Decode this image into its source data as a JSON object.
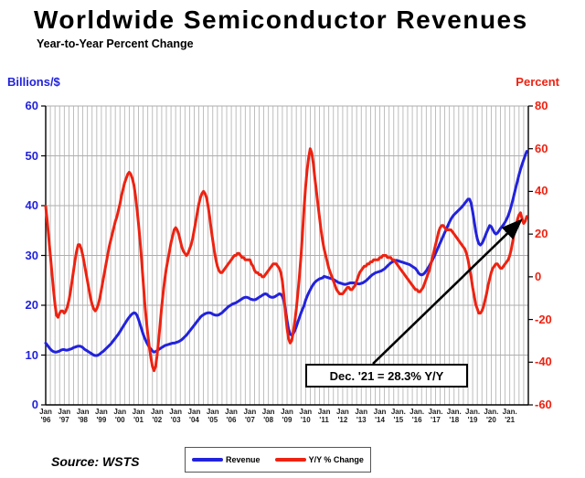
{
  "title": "Worldwide Semiconductor Revenues",
  "subtitle": "Year-to-Year Percent Change",
  "source": "Source: WSTS",
  "annotation": {
    "text": "Dec. '21 = 28.3% Y/Y"
  },
  "left_axis": {
    "label": "Billions/$",
    "color": "#2222dd",
    "min": 0,
    "max": 60,
    "ticks": [
      "60",
      "50",
      "40",
      "30",
      "20",
      "10",
      "0"
    ]
  },
  "right_axis": {
    "label": "Percent",
    "color": "#ee2211",
    "min": -60,
    "max": 80,
    "ticks": [
      "80",
      "60",
      "40",
      "20",
      "0",
      "-20",
      "-40",
      "-60"
    ]
  },
  "x_axis": {
    "month_labels": [
      "Jan",
      "Jan",
      "Jan",
      "Jan",
      "Jan",
      "Jan",
      "Jan",
      "Jan",
      "Jan",
      "Jan",
      "Jan",
      "Jan",
      "Jan",
      "Jan",
      "Jan",
      "Jan",
      "Jan",
      "Jan",
      "Jan",
      "Jan.",
      "Jan.",
      "Jan.",
      "Jan.",
      "Jan.",
      "Jan.",
      "Jan."
    ],
    "year_labels": [
      "'96",
      "'97",
      "'98",
      "'99",
      "'00",
      "'01",
      "'02",
      "'03",
      "'04",
      "'05",
      "'06",
      "'07",
      "'08",
      "'09",
      "'10",
      "'11",
      "'12",
      "'13",
      "'14",
      "'15",
      "'16",
      "'17",
      "'18",
      "'19",
      "'20",
      "'21"
    ]
  },
  "legend": [
    {
      "label": "Revenue",
      "color": "#2222dd"
    },
    {
      "label": "Y/Y % Change",
      "color": "#ee2211"
    }
  ],
  "chart_data": {
    "type": "line",
    "title": "Worldwide Semiconductor Revenues — Year-to-Year Percent Change",
    "frequency": "monthly",
    "start_year": 1996,
    "end_label": "Dec '21",
    "left_ylim": [
      0,
      60
    ],
    "right_ylim": [
      -60,
      80
    ],
    "grid": {
      "vertical": "quarterly",
      "horizontal": "every 10 (left axis)"
    },
    "legend_position": "bottom-center",
    "annotation_arrow": {
      "from_xy": [
        408,
        398
      ],
      "to_xy": [
        569,
        242
      ]
    },
    "series": [
      {
        "name": "Revenue",
        "axis": "left",
        "unit": "US$ billions/month",
        "color": "#2222dd",
        "values_by_year": [
          [
            12.4,
            12.0,
            11.6,
            11.2,
            10.9,
            10.7,
            10.6,
            10.6,
            10.7,
            10.8,
            11.0,
            11.1
          ],
          [
            11.1,
            11.0,
            11.0,
            11.1,
            11.2,
            11.3,
            11.5,
            11.6,
            11.7,
            11.8,
            11.8,
            11.7
          ],
          [
            11.5,
            11.2,
            11.0,
            10.8,
            10.6,
            10.4,
            10.2,
            10.0,
            9.9,
            9.9,
            10.0,
            10.2
          ],
          [
            10.5,
            10.7,
            11.0,
            11.3,
            11.6,
            11.9,
            12.2,
            12.6,
            13.0,
            13.4,
            13.8,
            14.2
          ],
          [
            14.7,
            15.2,
            15.7,
            16.2,
            16.7,
            17.2,
            17.6,
            18.0,
            18.3,
            18.5,
            18.4,
            18.0
          ],
          [
            17.2,
            16.2,
            15.2,
            14.2,
            13.4,
            12.7,
            12.1,
            11.6,
            11.2,
            10.8,
            10.6,
            10.7
          ],
          [
            10.9,
            11.1,
            11.3,
            11.5,
            11.7,
            11.9,
            12.0,
            12.1,
            12.2,
            12.3,
            12.4,
            12.4
          ],
          [
            12.5,
            12.6,
            12.7,
            12.9,
            13.1,
            13.4,
            13.7,
            14.0,
            14.4,
            14.8,
            15.2,
            15.6
          ],
          [
            16.0,
            16.4,
            16.8,
            17.2,
            17.6,
            17.9,
            18.1,
            18.3,
            18.4,
            18.5,
            18.5,
            18.4
          ],
          [
            18.2,
            18.1,
            18.0,
            18.0,
            18.1,
            18.3,
            18.5,
            18.8,
            19.1,
            19.4,
            19.7,
            19.9
          ],
          [
            20.1,
            20.3,
            20.4,
            20.5,
            20.7,
            20.9,
            21.1,
            21.3,
            21.5,
            21.6,
            21.6,
            21.5
          ],
          [
            21.3,
            21.2,
            21.1,
            21.1,
            21.2,
            21.4,
            21.6,
            21.8,
            22.0,
            22.2,
            22.3,
            22.2
          ],
          [
            21.9,
            21.7,
            21.6,
            21.6,
            21.7,
            21.9,
            22.1,
            22.3,
            22.2,
            21.8,
            20.8,
            19.2
          ],
          [
            17.0,
            15.2,
            14.2,
            14.0,
            14.3,
            14.9,
            15.7,
            16.6,
            17.5,
            18.4,
            19.2,
            19.9
          ],
          [
            21.0,
            21.8,
            22.5,
            23.1,
            23.7,
            24.2,
            24.6,
            24.9,
            25.1,
            25.3,
            25.4,
            25.5
          ],
          [
            25.8,
            25.7,
            25.6,
            25.5,
            25.4,
            25.3,
            25.2,
            25.0,
            24.8,
            24.6,
            24.5,
            24.4
          ],
          [
            24.3,
            24.2,
            24.2,
            24.3,
            24.4,
            24.5,
            24.5,
            24.5,
            24.4,
            24.4,
            24.3,
            24.3
          ],
          [
            24.4,
            24.5,
            24.7,
            24.9,
            25.2,
            25.5,
            25.8,
            26.1,
            26.3,
            26.5,
            26.6,
            26.7
          ],
          [
            26.8,
            26.9,
            27.1,
            27.3,
            27.6,
            27.9,
            28.2,
            28.5,
            28.7,
            28.9,
            29.0,
            29.0
          ],
          [
            28.9,
            28.8,
            28.7,
            28.6,
            28.5,
            28.4,
            28.3,
            28.2,
            28.0,
            27.8,
            27.6,
            27.4
          ],
          [
            27.0,
            26.5,
            26.2,
            26.1,
            26.2,
            26.5,
            26.9,
            27.4,
            27.9,
            28.5,
            29.1,
            29.7
          ],
          [
            30.4,
            31.1,
            31.8,
            32.5,
            33.2,
            33.9,
            34.6,
            35.3,
            36.0,
            36.7,
            37.3,
            37.8
          ],
          [
            38.2,
            38.5,
            38.8,
            39.1,
            39.4,
            39.7,
            40.1,
            40.5,
            40.9,
            41.3,
            41.3,
            40.5
          ],
          [
            38.8,
            36.8,
            34.8,
            33.3,
            32.4,
            32.1,
            32.4,
            33.0,
            33.8,
            34.6,
            35.3,
            36.0
          ],
          [
            35.8,
            35.2,
            34.6,
            34.3,
            34.5,
            34.9,
            35.4,
            35.8,
            36.2,
            36.7,
            37.3,
            38.0
          ],
          [
            38.9,
            40.0,
            41.2,
            42.5,
            43.8,
            45.0,
            46.2,
            47.3,
            48.3,
            49.2,
            50.1,
            50.9
          ]
        ]
      },
      {
        "name": "Y/Y % Change",
        "axis": "right",
        "unit": "percent",
        "color": "#ee2211",
        "values_by_year": [
          [
            33,
            26,
            18,
            10,
            2,
            -6,
            -13,
            -18,
            -19,
            -17,
            -16,
            -16
          ],
          [
            -17,
            -16,
            -14,
            -11,
            -7,
            -2,
            3,
            8,
            12,
            15,
            15,
            13
          ],
          [
            10,
            6,
            2,
            -2,
            -6,
            -10,
            -13,
            -15,
            -16,
            -15,
            -13,
            -10
          ],
          [
            -6,
            -2,
            2,
            6,
            10,
            14,
            17,
            20,
            23,
            26,
            28,
            31
          ],
          [
            34,
            38,
            41,
            44,
            46,
            48,
            49,
            48,
            46,
            43,
            38,
            32
          ],
          [
            25,
            17,
            8,
            -2,
            -12,
            -20,
            -27,
            -33,
            -38,
            -42,
            -44,
            -42
          ],
          [
            -37,
            -30,
            -22,
            -14,
            -7,
            -1,
            4,
            8,
            12,
            16,
            19,
            22
          ],
          [
            23,
            22,
            20,
            17,
            14,
            12,
            11,
            10,
            11,
            13,
            15,
            18
          ],
          [
            22,
            26,
            30,
            34,
            37,
            39,
            40,
            39,
            37,
            33,
            28,
            22
          ],
          [
            17,
            12,
            8,
            5,
            3,
            2,
            2,
            3,
            4,
            5,
            6,
            7
          ],
          [
            8,
            9,
            10,
            10,
            11,
            11,
            10,
            9,
            9,
            8,
            8,
            8
          ],
          [
            8,
            6,
            5,
            3,
            2,
            2,
            1,
            1,
            0,
            0,
            1,
            2
          ],
          [
            3,
            4,
            5,
            6,
            6,
            6,
            5,
            4,
            2,
            -2,
            -9,
            -17
          ],
          [
            -24,
            -29,
            -31,
            -30,
            -26,
            -21,
            -15,
            -8,
            0,
            9,
            20,
            32
          ],
          [
            42,
            50,
            56,
            60,
            58,
            53,
            46,
            40,
            34,
            28,
            22,
            17
          ],
          [
            13,
            10,
            7,
            4,
            2,
            0,
            -2,
            -4,
            -6,
            -7,
            -8,
            -8
          ],
          [
            -8,
            -7,
            -6,
            -5,
            -5,
            -6,
            -6,
            -5,
            -4,
            -2,
            0,
            2
          ],
          [
            3,
            4,
            5,
            5,
            6,
            6,
            7,
            7,
            8,
            8,
            8,
            8
          ],
          [
            9,
            9,
            10,
            10,
            10,
            9,
            9,
            9,
            8,
            8,
            7,
            6
          ],
          [
            5,
            4,
            3,
            2,
            1,
            0,
            -1,
            -2,
            -3,
            -4,
            -5,
            -6
          ],
          [
            -6,
            -7,
            -7,
            -6,
            -5,
            -3,
            -1,
            1,
            3,
            6,
            9,
            12
          ],
          [
            15,
            18,
            21,
            23,
            24,
            24,
            23,
            22,
            22,
            22,
            22,
            21
          ],
          [
            20,
            19,
            18,
            17,
            16,
            15,
            14,
            13,
            11,
            8,
            4,
            0
          ],
          [
            -5,
            -9,
            -13,
            -15,
            -17,
            -17,
            -16,
            -14,
            -11,
            -8,
            -4,
            -1
          ],
          [
            2,
            4,
            5,
            6,
            6,
            5,
            4,
            4,
            5,
            6,
            7,
            8
          ],
          [
            10,
            13,
            17,
            21,
            24,
            27,
            29,
            30,
            27,
            25,
            26,
            28.3
          ]
        ]
      }
    ]
  }
}
